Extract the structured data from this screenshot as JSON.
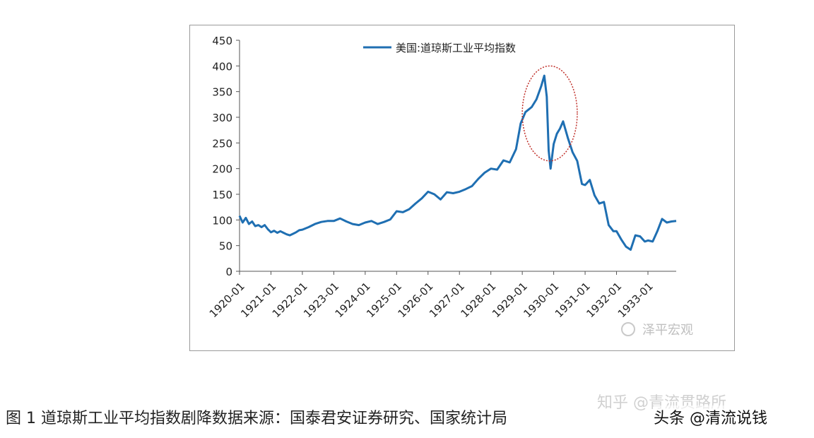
{
  "chart_data": {
    "type": "line",
    "title": "",
    "xlabel": "",
    "ylabel": "",
    "ylim": [
      0,
      450
    ],
    "yticks": [
      0,
      50,
      100,
      150,
      200,
      250,
      300,
      350,
      400,
      450
    ],
    "xlim": [
      1920.0,
      1933.9
    ],
    "xticks": [
      "1920-01",
      "1921-01",
      "1922-01",
      "1923-01",
      "1924-01",
      "1925-01",
      "1926-01",
      "1927-01",
      "1928-01",
      "1929-01",
      "1930-01",
      "1931-01",
      "1932-01",
      "1933-01"
    ],
    "grid": false,
    "legend_position": "top",
    "series": [
      {
        "name": "美国:道琼斯工业平均指数",
        "color": "#1f6fb2",
        "points": [
          [
            1920.0,
            108
          ],
          [
            1920.1,
            95
          ],
          [
            1920.2,
            104
          ],
          [
            1920.3,
            92
          ],
          [
            1920.4,
            97
          ],
          [
            1920.5,
            88
          ],
          [
            1920.6,
            90
          ],
          [
            1920.7,
            86
          ],
          [
            1920.8,
            90
          ],
          [
            1920.9,
            82
          ],
          [
            1921.0,
            76
          ],
          [
            1921.1,
            79
          ],
          [
            1921.2,
            75
          ],
          [
            1921.3,
            78
          ],
          [
            1921.4,
            75
          ],
          [
            1921.5,
            72
          ],
          [
            1921.6,
            70
          ],
          [
            1921.7,
            73
          ],
          [
            1921.8,
            76
          ],
          [
            1921.9,
            80
          ],
          [
            1922.0,
            81
          ],
          [
            1922.2,
            86
          ],
          [
            1922.4,
            92
          ],
          [
            1922.6,
            96
          ],
          [
            1922.8,
            98
          ],
          [
            1923.0,
            98
          ],
          [
            1923.2,
            103
          ],
          [
            1923.4,
            97
          ],
          [
            1923.6,
            92
          ],
          [
            1923.8,
            90
          ],
          [
            1924.0,
            95
          ],
          [
            1924.2,
            98
          ],
          [
            1924.4,
            92
          ],
          [
            1924.6,
            96
          ],
          [
            1924.8,
            101
          ],
          [
            1925.0,
            117
          ],
          [
            1925.2,
            115
          ],
          [
            1925.4,
            121
          ],
          [
            1925.6,
            132
          ],
          [
            1925.8,
            142
          ],
          [
            1926.0,
            155
          ],
          [
            1926.2,
            150
          ],
          [
            1926.4,
            140
          ],
          [
            1926.6,
            154
          ],
          [
            1926.8,
            152
          ],
          [
            1927.0,
            155
          ],
          [
            1927.2,
            160
          ],
          [
            1927.4,
            166
          ],
          [
            1927.6,
            180
          ],
          [
            1927.8,
            192
          ],
          [
            1928.0,
            200
          ],
          [
            1928.2,
            198
          ],
          [
            1928.4,
            216
          ],
          [
            1928.6,
            212
          ],
          [
            1928.8,
            238
          ],
          [
            1928.95,
            288
          ],
          [
            1929.1,
            310
          ],
          [
            1929.3,
            320
          ],
          [
            1929.45,
            335
          ],
          [
            1929.6,
            360
          ],
          [
            1929.7,
            381
          ],
          [
            1929.78,
            340
          ],
          [
            1929.84,
            235
          ],
          [
            1929.9,
            200
          ],
          [
            1930.0,
            248
          ],
          [
            1930.1,
            268
          ],
          [
            1930.2,
            278
          ],
          [
            1930.3,
            292
          ],
          [
            1930.45,
            260
          ],
          [
            1930.6,
            232
          ],
          [
            1930.75,
            215
          ],
          [
            1930.9,
            170
          ],
          [
            1931.0,
            168
          ],
          [
            1931.15,
            178
          ],
          [
            1931.3,
            148
          ],
          [
            1931.45,
            132
          ],
          [
            1931.6,
            135
          ],
          [
            1931.75,
            90
          ],
          [
            1931.9,
            78
          ],
          [
            1932.0,
            78
          ],
          [
            1932.15,
            62
          ],
          [
            1932.3,
            48
          ],
          [
            1932.45,
            42
          ],
          [
            1932.6,
            70
          ],
          [
            1932.75,
            68
          ],
          [
            1932.9,
            58
          ],
          [
            1933.0,
            60
          ],
          [
            1933.15,
            58
          ],
          [
            1933.3,
            78
          ],
          [
            1933.45,
            102
          ],
          [
            1933.6,
            95
          ],
          [
            1933.75,
            97
          ],
          [
            1933.9,
            98
          ]
        ]
      }
    ],
    "annotations": [
      {
        "type": "dashed-ellipse",
        "color": "#c0302a",
        "x_range": [
          1929.0,
          1930.75
        ],
        "y_range": [
          215,
          400
        ]
      }
    ]
  },
  "watermark_inner": "泽平宏观",
  "watermark_zhihu": "知乎 @青流贯路所",
  "caption": "图 1 道琼斯工业平均指数剧降数据来源：国泰君安证券研究、国家统计局",
  "watermark_toutiao": "头条 @清流说钱"
}
